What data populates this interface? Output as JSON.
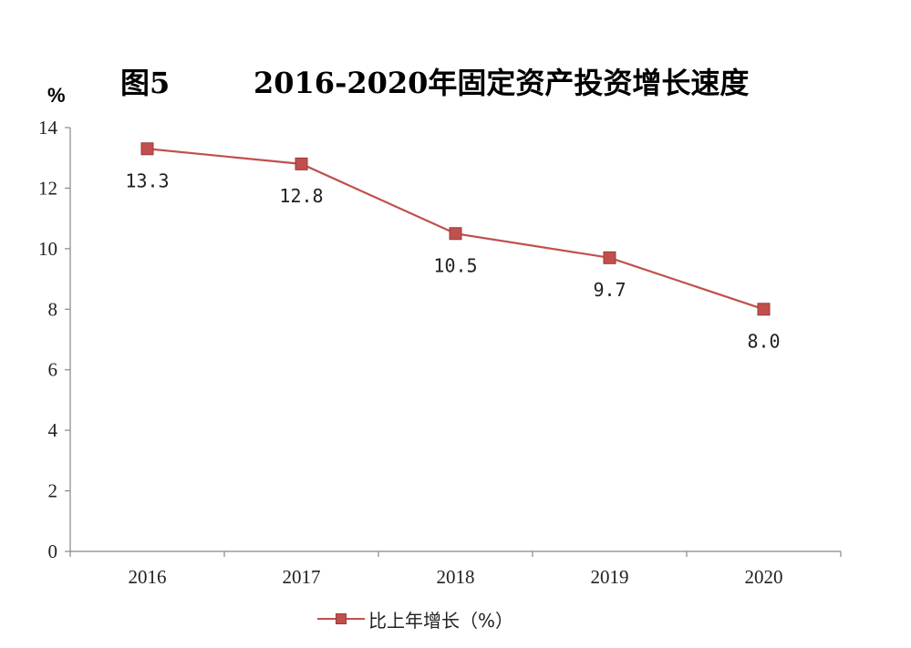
{
  "title": {
    "prefix": "图5",
    "main": "2016-2020年固定资产投资增长速度"
  },
  "chart_data": {
    "type": "line",
    "x": [
      "2016",
      "2017",
      "2018",
      "2019",
      "2020"
    ],
    "series": [
      {
        "name": "比上年增长（%）",
        "values": [
          13.3,
          12.8,
          10.5,
          9.7,
          8.0
        ],
        "labels": [
          "13.3",
          "12.8",
          "10.5",
          "9.7",
          "8.0"
        ],
        "color": "#c0504d"
      }
    ],
    "y_unit": "%",
    "ylim": [
      0,
      14
    ],
    "yticks": [
      0,
      2,
      4,
      6,
      8,
      10,
      12,
      14
    ],
    "grid": false,
    "legend_position": "bottom"
  }
}
